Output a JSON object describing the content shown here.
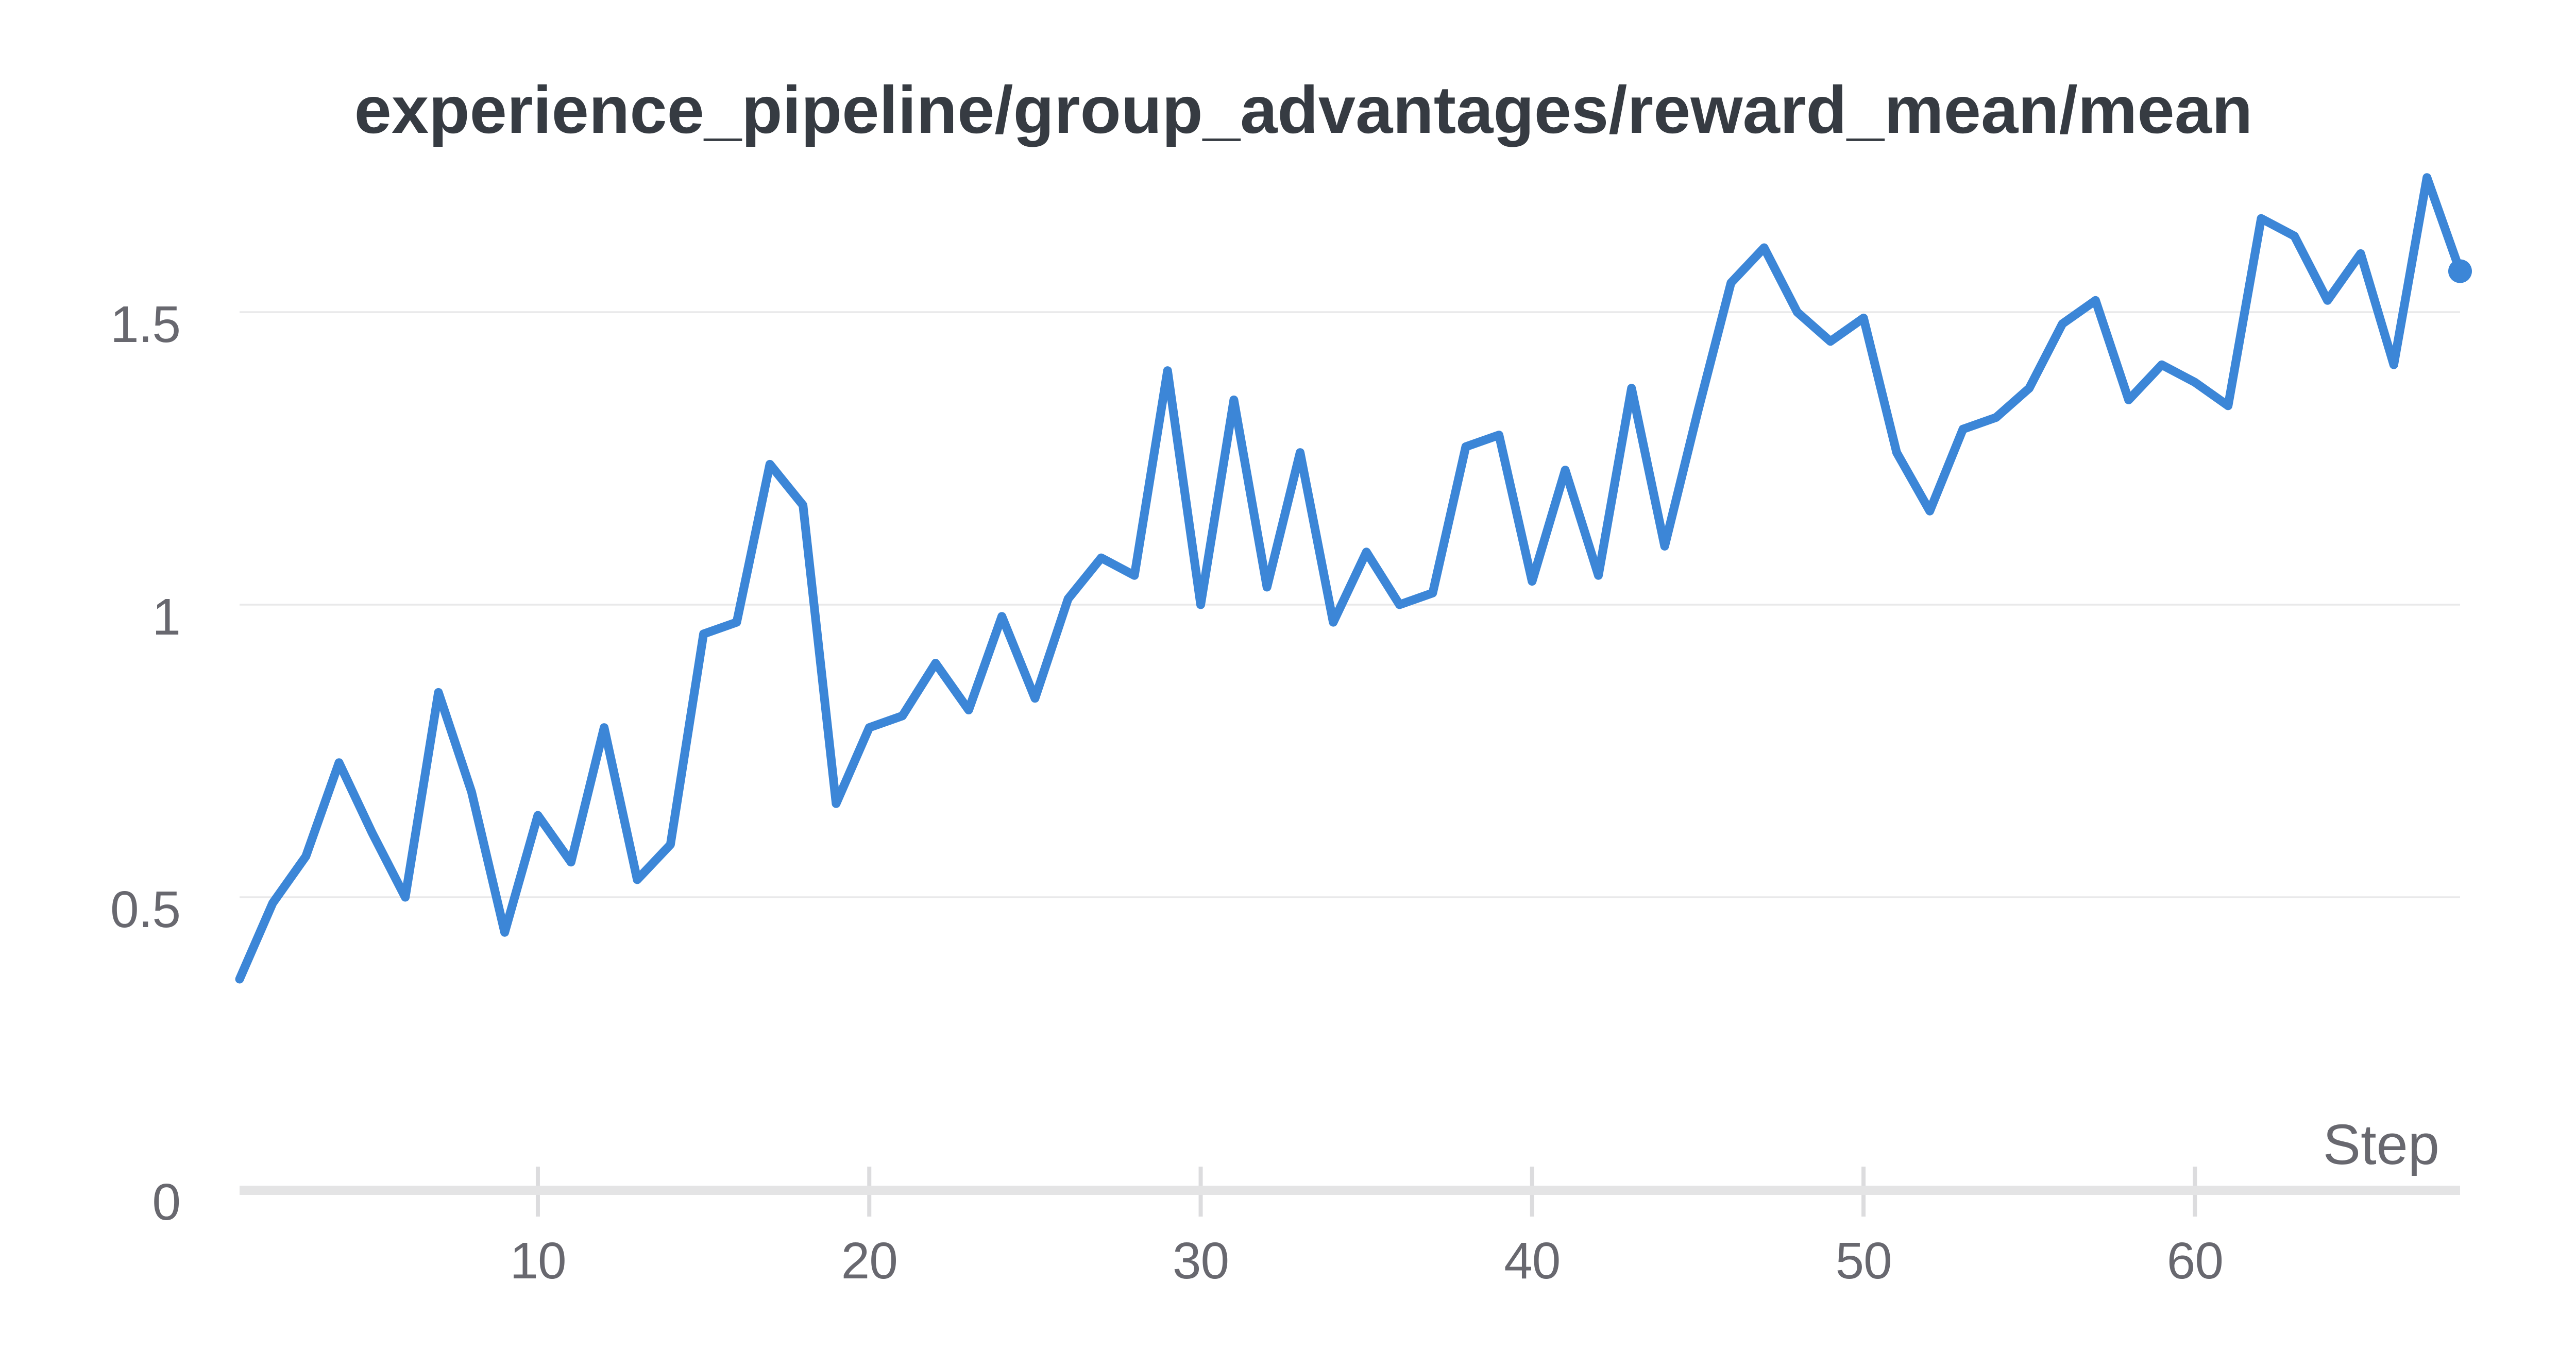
{
  "chart": {
    "title": "experience_pipeline/group_advantages/reward_mean/mean",
    "x_axis_label": "Step"
  },
  "colors": {
    "line": "#3c86d7",
    "grid": "#e9e9ea",
    "axis": "#e4e4e5",
    "tick": "#dcdcde",
    "label": "#68686f",
    "title": "#363b42",
    "background": "#ffffff"
  },
  "chart_data": {
    "type": "line",
    "title": "experience_pipeline/group_advantages/reward_mean/mean",
    "xlabel": "Step",
    "ylabel": "",
    "x": [
      1,
      2,
      3,
      4,
      5,
      6,
      7,
      8,
      9,
      10,
      11,
      12,
      13,
      14,
      15,
      16,
      17,
      18,
      19,
      20,
      21,
      22,
      23,
      24,
      25,
      26,
      27,
      28,
      29,
      30,
      31,
      32,
      33,
      34,
      35,
      36,
      37,
      38,
      39,
      40,
      41,
      42,
      43,
      44,
      45,
      46,
      47,
      48,
      49,
      50,
      51,
      52,
      53,
      54,
      55,
      56,
      57,
      58,
      59,
      60,
      61,
      62,
      63,
      64,
      65,
      66,
      67,
      68
    ],
    "values": [
      0.36,
      0.49,
      0.57,
      0.73,
      0.61,
      0.5,
      0.85,
      0.68,
      0.44,
      0.64,
      0.56,
      0.79,
      0.53,
      0.59,
      0.95,
      0.97,
      1.24,
      1.17,
      0.66,
      0.79,
      0.81,
      0.9,
      0.82,
      0.98,
      0.84,
      1.01,
      1.08,
      1.05,
      1.4,
      1.0,
      1.35,
      1.03,
      1.26,
      0.97,
      1.09,
      1.0,
      1.02,
      1.27,
      1.29,
      1.04,
      1.23,
      1.05,
      1.37,
      1.1,
      1.33,
      1.55,
      1.61,
      1.5,
      1.45,
      1.49,
      1.26,
      1.16,
      1.3,
      1.32,
      1.37,
      1.48,
      1.52,
      1.35,
      1.41,
      1.38,
      1.34,
      1.66,
      1.63,
      1.52,
      1.6,
      1.41,
      1.73,
      1.57
    ],
    "x_ticks": [
      10,
      20,
      30,
      40,
      50,
      60
    ],
    "y_ticks": [
      0,
      0.5,
      1,
      1.5
    ],
    "y_tick_labels": [
      "0",
      "0.5",
      "1",
      "1.5"
    ],
    "xlim": [
      1,
      68
    ],
    "ylim": [
      0,
      1.85
    ],
    "grid": "horizontal",
    "legend": false,
    "end_marker": "dot"
  }
}
